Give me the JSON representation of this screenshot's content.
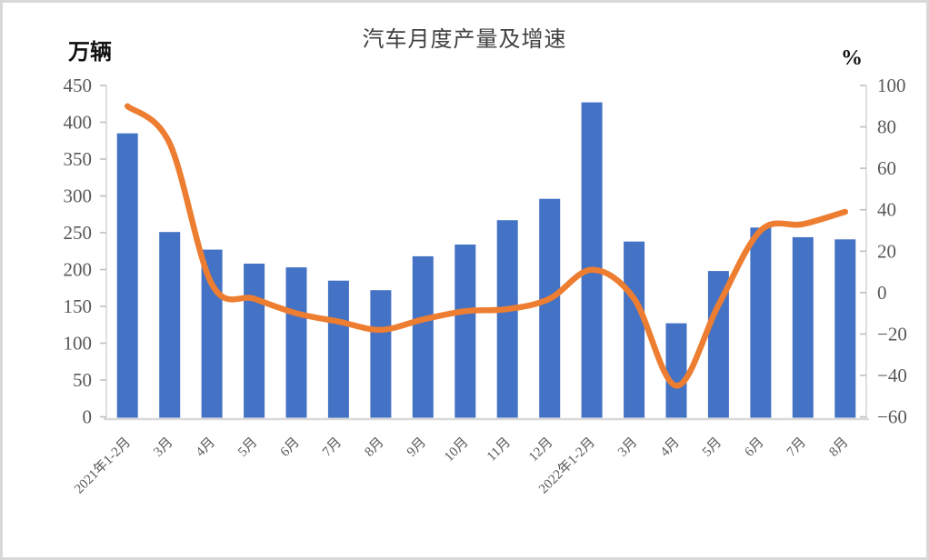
{
  "window": {
    "background_color": "#ffffff",
    "border_color": "#d8d8d8"
  },
  "chart_data": {
    "type": "bar+line",
    "title": "汽车月度产量及增速",
    "categories": [
      "2021年1-2月",
      "3月",
      "4月",
      "5月",
      "6月",
      "7月",
      "8月",
      "9月",
      "10月",
      "11月",
      "12月",
      "2022年1-2月",
      "3月",
      "4月",
      "5月",
      "6月",
      "7月",
      "8月"
    ],
    "series": [
      {
        "name": "产量",
        "type": "bar",
        "axis": "left",
        "unit": "万辆",
        "color": "#4472C4",
        "values": [
          385,
          251,
          227,
          208,
          203,
          185,
          172,
          218,
          234,
          267,
          296,
          427,
          238,
          127,
          198,
          257,
          244,
          241
        ]
      },
      {
        "name": "增速",
        "type": "line",
        "axis": "right",
        "unit": "%",
        "color": "#ED7D31",
        "values": [
          90,
          72,
          4,
          -3,
          -10,
          -14,
          -18,
          -13,
          -9,
          -8,
          -3,
          11,
          -3,
          -45,
          -6,
          30,
          33,
          39
        ]
      }
    ],
    "left_axis": {
      "unit": "万辆",
      "min": 0,
      "max": 450,
      "step": 50,
      "tick_labels": [
        "450",
        "400",
        "350",
        "300",
        "250",
        "200",
        "150",
        "100",
        "50",
        "0"
      ]
    },
    "right_axis": {
      "unit": "%",
      "min": -60,
      "max": 100,
      "step": 20,
      "tick_labels": [
        "100",
        "80",
        "60",
        "40",
        "20",
        "0",
        "−20",
        "−40",
        "−60"
      ]
    },
    "x_axis": {
      "label_rotation_deg": -45
    },
    "grid": false,
    "legend": "none",
    "colors": {
      "bar": "#4472C4",
      "line": "#ED7D31",
      "axis_line": "#D9D9D9",
      "tick_mark": "#BFBFBF",
      "tick_label": "#595959",
      "title": "#404040"
    }
  }
}
